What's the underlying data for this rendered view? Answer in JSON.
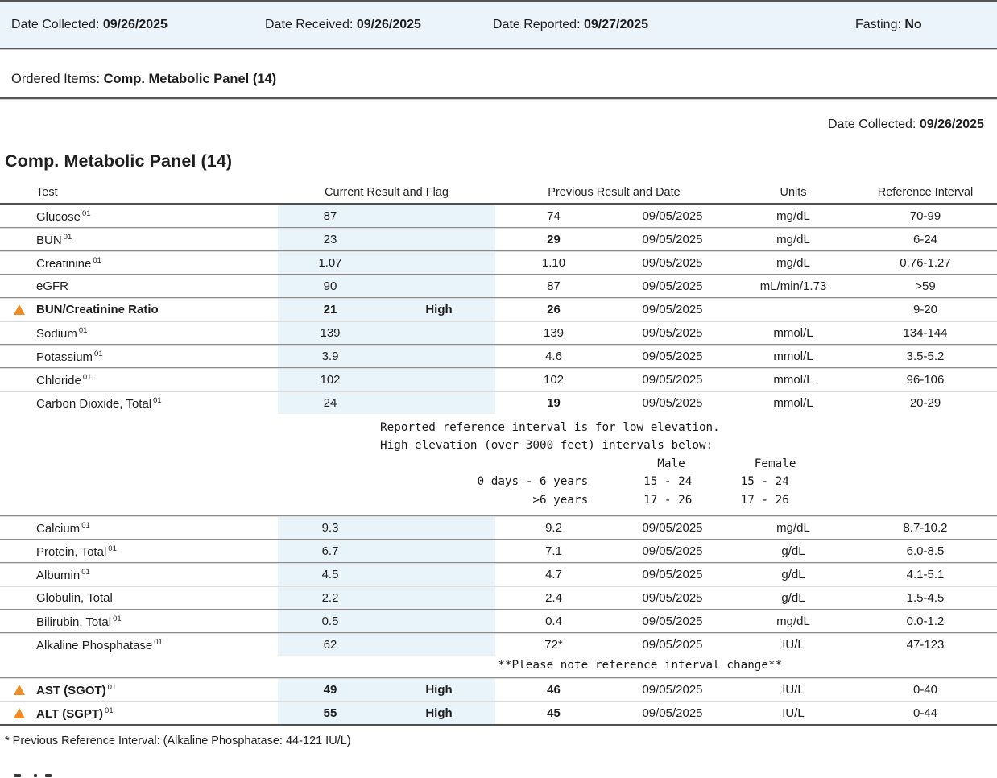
{
  "colors": {
    "bar_background": "#EBF4FA",
    "highlight_column": "#E9F3FA",
    "flag_accent": "#F08B21",
    "rule_dark": "#555555"
  },
  "top_bar": {
    "fields": [
      {
        "label": "Date Collected:",
        "value": "09/26/2025"
      },
      {
        "label": "Date Received:",
        "value": "09/26/2025"
      },
      {
        "label": "Date Reported:",
        "value": "09/27/2025"
      },
      {
        "label": "Fasting:",
        "value": "No"
      }
    ]
  },
  "ordered_items": {
    "label": "Ordered Items:",
    "value": "Comp. Metabolic Panel (14)"
  },
  "collected_right": {
    "label": "Date Collected:",
    "value": "09/26/2025"
  },
  "panel": {
    "title": "Comp. Metabolic Panel (14)",
    "columns": {
      "test": "Test",
      "current": "Current Result and Flag",
      "previous": "Previous Result and Date",
      "units": "Units",
      "reference": "Reference Interval"
    },
    "rows": [
      {
        "name": "Glucose",
        "sup": "01",
        "flagged": false,
        "current": "87",
        "current_flag": "",
        "prev": "74",
        "prev_bold": false,
        "date": "09/05/2025",
        "units": "mg/dL",
        "ref": "70-99"
      },
      {
        "name": "BUN",
        "sup": "01",
        "flagged": false,
        "current": "23",
        "current_flag": "",
        "prev": "29",
        "prev_bold": true,
        "date": "09/05/2025",
        "units": "mg/dL",
        "ref": "6-24"
      },
      {
        "name": "Creatinine",
        "sup": "01",
        "flagged": false,
        "current": "1.07",
        "current_flag": "",
        "prev": "1.10",
        "prev_bold": false,
        "date": "09/05/2025",
        "units": "mg/dL",
        "ref": "0.76-1.27"
      },
      {
        "name": "eGFR",
        "sup": "",
        "flagged": false,
        "current": "90",
        "current_flag": "",
        "prev": "87",
        "prev_bold": false,
        "date": "09/05/2025",
        "units": "mL/min/1.73",
        "ref": ">59"
      },
      {
        "name": "BUN/Creatinine Ratio",
        "sup": "",
        "flagged": true,
        "current": "21",
        "current_flag": "High",
        "prev": "26",
        "prev_bold": true,
        "date": "09/05/2025",
        "units": "",
        "ref": "9-20"
      },
      {
        "name": "Sodium",
        "sup": "01",
        "flagged": false,
        "current": "139",
        "current_flag": "",
        "prev": "139",
        "prev_bold": false,
        "date": "09/05/2025",
        "units": "mmol/L",
        "ref": "134-144"
      },
      {
        "name": "Potassium",
        "sup": "01",
        "flagged": false,
        "current": "3.9",
        "current_flag": "",
        "prev": "4.6",
        "prev_bold": false,
        "date": "09/05/2025",
        "units": "mmol/L",
        "ref": "3.5-5.2"
      },
      {
        "name": "Chloride",
        "sup": "01",
        "flagged": false,
        "current": "102",
        "current_flag": "",
        "prev": "102",
        "prev_bold": false,
        "date": "09/05/2025",
        "units": "mmol/L",
        "ref": "96-106"
      },
      {
        "name": "Carbon Dioxide, Total",
        "sup": "01",
        "flagged": false,
        "current": "24",
        "current_flag": "",
        "prev": "19",
        "prev_bold": true,
        "date": "09/05/2025",
        "units": "mmol/L",
        "ref": "20-29",
        "note": "Reported reference interval is for low elevation.\nHigh elevation (over 3000 feet) intervals below:\n                                        Male          Female\n              0 days - 6 years        15 - 24       15 - 24\n                      >6 years        17 - 26       17 - 26"
      },
      {
        "name": "Calcium",
        "sup": "01",
        "flagged": false,
        "current": "9.3",
        "current_flag": "",
        "prev": "9.2",
        "prev_bold": false,
        "date": "09/05/2025",
        "units": "mg/dL",
        "ref": "8.7-10.2"
      },
      {
        "name": "Protein, Total",
        "sup": "01",
        "flagged": false,
        "current": "6.7",
        "current_flag": "",
        "prev": "7.1",
        "prev_bold": false,
        "date": "09/05/2025",
        "units": "g/dL",
        "ref": "6.0-8.5"
      },
      {
        "name": "Albumin",
        "sup": "01",
        "flagged": false,
        "current": "4.5",
        "current_flag": "",
        "prev": "4.7",
        "prev_bold": false,
        "date": "09/05/2025",
        "units": "g/dL",
        "ref": "4.1-5.1"
      },
      {
        "name": "Globulin, Total",
        "sup": "",
        "flagged": false,
        "current": "2.2",
        "current_flag": "",
        "prev": "2.4",
        "prev_bold": false,
        "date": "09/05/2025",
        "units": "g/dL",
        "ref": "1.5-4.5"
      },
      {
        "name": "Bilirubin, Total",
        "sup": "01",
        "flagged": false,
        "current": "0.5",
        "current_flag": "",
        "prev": "0.4",
        "prev_bold": false,
        "date": "09/05/2025",
        "units": "mg/dL",
        "ref": "0.0-1.2"
      },
      {
        "name": "Alkaline Phosphatase",
        "sup": "01",
        "flagged": false,
        "current": "62",
        "current_flag": "",
        "prev": "72*",
        "prev_bold": false,
        "date": "09/05/2025",
        "units": "IU/L",
        "ref": "47-123",
        "note": "                 **Please note reference interval change**",
        "note_single": true
      },
      {
        "name": "AST (SGOT)",
        "sup": "01",
        "flagged": true,
        "current": "49",
        "current_flag": "High",
        "prev": "46",
        "prev_bold": true,
        "date": "09/05/2025",
        "units": "IU/L",
        "ref": "0-40"
      },
      {
        "name": "ALT (SGPT)",
        "sup": "01",
        "flagged": true,
        "current": "55",
        "current_flag": "High",
        "prev": "45",
        "prev_bold": true,
        "date": "09/05/2025",
        "units": "IU/L",
        "ref": "0-44"
      }
    ],
    "footnote": "* Previous Reference Interval: (Alkaline Phosphatase: 44-121 IU/L)"
  }
}
